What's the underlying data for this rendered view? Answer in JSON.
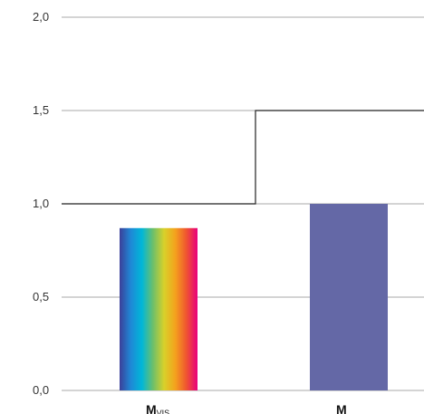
{
  "chart_data": {
    "type": "bar",
    "title": "",
    "xlabel": "",
    "ylabel": "",
    "ylim": [
      0,
      2.0
    ],
    "y_ticks": [
      {
        "value": 0.0,
        "label": "0,0"
      },
      {
        "value": 0.5,
        "label": "0,5"
      },
      {
        "value": 1.0,
        "label": "1,0"
      },
      {
        "value": 1.5,
        "label": "1,5"
      },
      {
        "value": 2.0,
        "label": "2,0"
      }
    ],
    "grid": true,
    "categories": [
      {
        "label_main": "M",
        "label_sub": "VIS",
        "value": 0.87,
        "fill": "spectrum"
      },
      {
        "label_main": "M",
        "label_sub": "",
        "value": 1.0,
        "fill": "#6468a6"
      }
    ],
    "threshold": {
      "type": "step",
      "values": [
        1.0,
        1.5
      ]
    },
    "colors": {
      "grid": "#aaaaaa",
      "threshold": "#222222",
      "spectrum": [
        "#3b3f99",
        "#1f88d6",
        "#00b7d8",
        "#6dbf6a",
        "#d8d12a",
        "#f4a21d",
        "#ef5530",
        "#e8007d"
      ]
    }
  }
}
